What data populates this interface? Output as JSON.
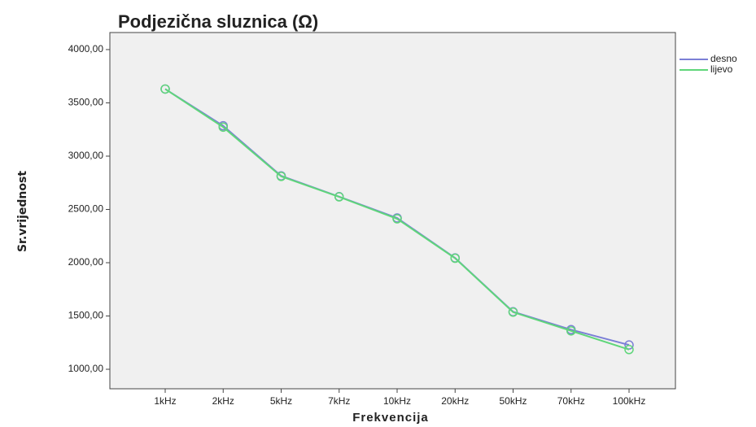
{
  "chart_data": {
    "type": "line",
    "title": "Podjezična sluznica (Ω)",
    "x_label": "Frekvencija",
    "y_label": "Sr.vrijednost",
    "categories": [
      "1kHz",
      "2kHz",
      "5kHz",
      "7kHz",
      "10kHz",
      "20kHz",
      "50kHz",
      "70kHz",
      "100kHz"
    ],
    "series": [
      {
        "name": "desno",
        "color": "#7b7fd6",
        "values": [
          3630,
          3285,
          2815,
          2620,
          2420,
          2045,
          1540,
          1372,
          1228
        ]
      },
      {
        "name": "lijevo",
        "color": "#5fd67a",
        "values": [
          3630,
          3272,
          2810,
          2618,
          2412,
          2042,
          1536,
          1360,
          1185
        ]
      }
    ],
    "ylim": [
      817,
      4160
    ],
    "yticks": [
      {
        "value": 1000,
        "label": "1000,00"
      },
      {
        "value": 1500,
        "label": "1500,00"
      },
      {
        "value": 2000,
        "label": "2000,00"
      },
      {
        "value": 2500,
        "label": "2500,00"
      },
      {
        "value": 3000,
        "label": "3000,00"
      },
      {
        "value": 3500,
        "label": "3500,00"
      },
      {
        "value": 4000,
        "label": "4000,00"
      }
    ],
    "grid": false,
    "legend": "right"
  }
}
